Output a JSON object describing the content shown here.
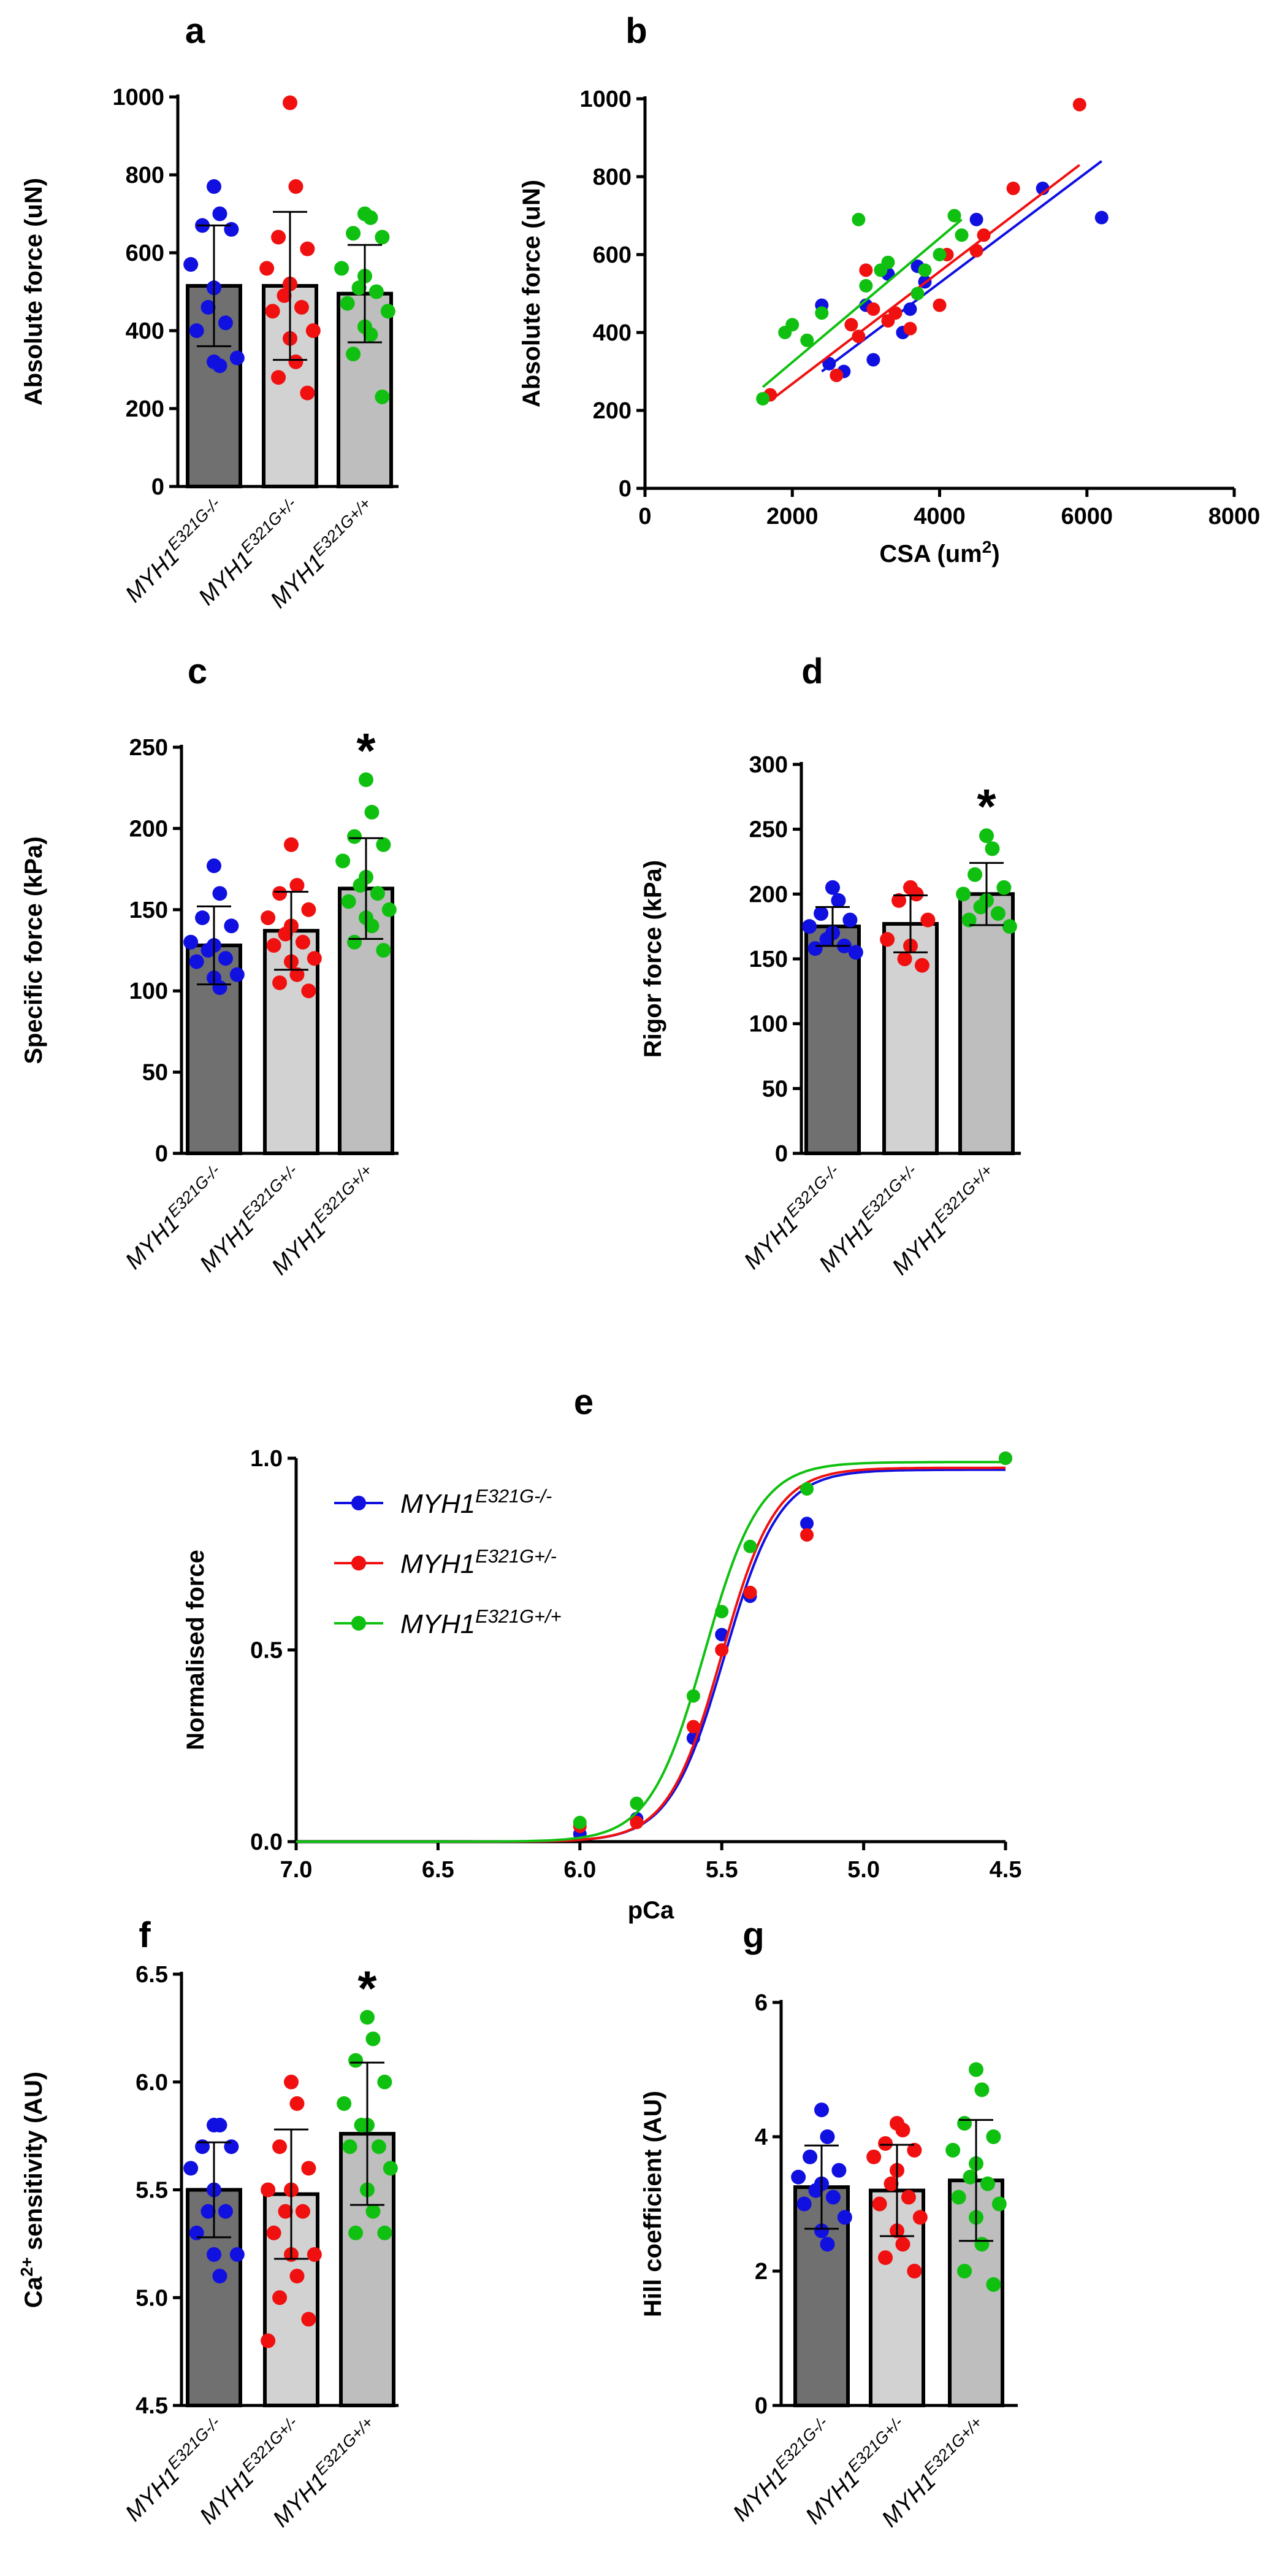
{
  "figure": {
    "group_labels": [
      {
        "base": "MYH1",
        "sup": "E321G-/-"
      },
      {
        "base": "MYH1",
        "sup": "E321G+/-"
      },
      {
        "base": "MYH1",
        "sup": "E321G+/+"
      }
    ],
    "colors": {
      "wt": "#1010e0",
      "het": "#f01010",
      "hom": "#10c010",
      "axis": "#000000"
    },
    "bar_colors": [
      "#707070",
      "#d2d2d2",
      "#bebebe"
    ],
    "significance_marker": "*"
  },
  "chart_data": [
    {
      "id": "a",
      "letter": "a",
      "type": "bar",
      "ylabel": "Absolute force (uN)",
      "ylim": [
        0,
        1000
      ],
      "yticks": [
        0,
        200,
        400,
        600,
        800,
        1000
      ],
      "ytick_labels": [
        "0",
        "200",
        "400",
        "600",
        "800",
        "1000"
      ],
      "categories": [
        "MYH1 E321G-/-",
        "MYH1 E321G+/-",
        "MYH1 E321G+/+"
      ],
      "means": [
        515,
        515,
        495
      ],
      "sd": [
        155,
        190,
        125
      ],
      "points": [
        [
          770,
          700,
          670,
          660,
          570,
          510,
          460,
          420,
          400,
          330,
          320,
          310
        ],
        [
          985,
          770,
          640,
          610,
          560,
          520,
          490,
          460,
          450,
          400,
          380,
          320,
          280,
          240
        ],
        [
          700,
          690,
          650,
          640,
          560,
          540,
          510,
          500,
          470,
          450,
          410,
          390,
          340,
          230
        ]
      ],
      "significant": [
        false,
        false,
        false
      ]
    },
    {
      "id": "b",
      "letter": "b",
      "type": "scatter",
      "xlabel_prefix": "CSA (um",
      "xlabel_sup": "2",
      "xlabel_suffix": ")",
      "ylabel": "Absolute force (uN)",
      "xlim": [
        0,
        8000
      ],
      "xticks": [
        0,
        2000,
        4000,
        6000,
        8000
      ],
      "xtick_labels": [
        "0",
        "2000",
        "4000",
        "6000",
        "8000"
      ],
      "ylim": [
        0,
        1000
      ],
      "yticks": [
        0,
        200,
        400,
        600,
        800,
        1000
      ],
      "ytick_labels": [
        "0",
        "200",
        "400",
        "600",
        "800",
        "1000"
      ],
      "series": [
        {
          "name": "MYH1 E321G-/-",
          "color": "#1010e0",
          "x": [
            2500,
            2700,
            3000,
            3100,
            3300,
            3500,
            3700,
            3800,
            4500,
            5400,
            6200,
            3600,
            2400
          ],
          "y": [
            320,
            300,
            470,
            330,
            550,
            400,
            570,
            530,
            690,
            770,
            695,
            460,
            470
          ],
          "fit": [
            [
              2400,
              300
            ],
            [
              6200,
              840
            ]
          ]
        },
        {
          "name": "MYH1 E321G+/-",
          "color": "#f01010",
          "x": [
            1700,
            2600,
            2800,
            2900,
            3000,
            3100,
            3300,
            3400,
            3600,
            4000,
            4100,
            4500,
            4600,
            5000,
            5900
          ],
          "y": [
            240,
            290,
            420,
            390,
            560,
            460,
            430,
            450,
            410,
            470,
            600,
            610,
            650,
            770,
            985
          ],
          "fit": [
            [
              1700,
              225
            ],
            [
              5900,
              830
            ]
          ]
        },
        {
          "name": "MYH1 E321G+/+",
          "color": "#10c010",
          "x": [
            1600,
            1900,
            2000,
            2200,
            2400,
            2900,
            3000,
            3200,
            3300,
            3700,
            3800,
            4000,
            4200,
            4300
          ],
          "y": [
            230,
            400,
            420,
            380,
            450,
            690,
            520,
            560,
            580,
            500,
            560,
            600,
            700,
            650
          ],
          "fit": [
            [
              1600,
              260
            ],
            [
              4300,
              690
            ]
          ]
        }
      ]
    },
    {
      "id": "c",
      "letter": "c",
      "type": "bar",
      "ylabel": "Specific force (kPa)",
      "ylim": [
        0,
        250
      ],
      "yticks": [
        0,
        50,
        100,
        150,
        200,
        250
      ],
      "ytick_labels": [
        "0",
        "50",
        "100",
        "150",
        "200",
        "250"
      ],
      "categories": [
        "MYH1 E321G-/-",
        "MYH1 E321G+/-",
        "MYH1 E321G+/+"
      ],
      "means": [
        128,
        137,
        163
      ],
      "sd": [
        24,
        24,
        31
      ],
      "points": [
        [
          177,
          160,
          145,
          140,
          130,
          128,
          125,
          120,
          118,
          110,
          108,
          102
        ],
        [
          190,
          165,
          160,
          150,
          145,
          140,
          135,
          130,
          128,
          120,
          118,
          110,
          105,
          100
        ],
        [
          230,
          210,
          195,
          190,
          180,
          170,
          165,
          160,
          155,
          150,
          145,
          140,
          130,
          125
        ]
      ],
      "significant": [
        false,
        false,
        true
      ]
    },
    {
      "id": "d",
      "letter": "d",
      "type": "bar",
      "ylabel": "Rigor force (kPa)",
      "ylim": [
        0,
        300
      ],
      "yticks": [
        0,
        50,
        100,
        150,
        200,
        250,
        300
      ],
      "ytick_labels": [
        "0",
        "50",
        "100",
        "150",
        "200",
        "250",
        "300"
      ],
      "categories": [
        "MYH1 E321G-/-",
        "MYH1 E321G+/-",
        "MYH1 E321G+/+"
      ],
      "means": [
        175,
        177,
        200
      ],
      "sd": [
        15,
        22,
        24
      ],
      "points": [
        [
          205,
          195,
          185,
          180,
          175,
          170,
          165,
          160,
          158,
          155
        ],
        [
          205,
          200,
          195,
          180,
          165,
          160,
          150,
          145
        ],
        [
          245,
          235,
          215,
          205,
          200,
          195,
          190,
          185,
          180,
          175
        ]
      ],
      "significant": [
        false,
        false,
        true
      ]
    },
    {
      "id": "e",
      "letter": "e",
      "type": "line",
      "xlabel": "pCa",
      "ylabel": "Normalised force",
      "xlim": [
        7.0,
        4.5
      ],
      "xticks": [
        7.0,
        6.5,
        6.0,
        5.5,
        5.0,
        4.5
      ],
      "xtick_labels": [
        "7.0",
        "6.5",
        "6.0",
        "5.5",
        "5.0",
        "4.5"
      ],
      "ylim": [
        0.0,
        1.0
      ],
      "yticks": [
        0.0,
        0.5,
        1.0
      ],
      "ytick_labels": [
        "0.0",
        "0.5",
        "1.0"
      ],
      "x": [
        6.0,
        5.8,
        5.6,
        5.5,
        5.4,
        5.2,
        4.5
      ],
      "series": [
        {
          "name": "MYH1 E321G-/-",
          "color": "#1010e0",
          "values": [
            0.02,
            0.06,
            0.27,
            0.54,
            0.64,
            0.83,
            1.0
          ],
          "pca50": 5.49,
          "hill": 4.5,
          "max": 0.97
        },
        {
          "name": "MYH1 E321G+/-",
          "color": "#f01010",
          "values": [
            0.04,
            0.05,
            0.3,
            0.5,
            0.65,
            0.8,
            1.0
          ],
          "pca50": 5.5,
          "hill": 4.6,
          "max": 0.975
        },
        {
          "name": "MYH1 E321G+/+",
          "color": "#10c010",
          "values": [
            0.05,
            0.1,
            0.38,
            0.6,
            0.77,
            0.92,
            1.0
          ],
          "pca50": 5.56,
          "hill": 4.5,
          "max": 0.99
        }
      ],
      "legend": [
        {
          "base": "MYH1",
          "sup": "E321G-/-",
          "color": "#1010e0"
        },
        {
          "base": "MYH1",
          "sup": "E321G+/-",
          "color": "#f01010"
        },
        {
          "base": "MYH1",
          "sup": "E321G+/+",
          "color": "#10c010"
        }
      ]
    },
    {
      "id": "f",
      "letter": "f",
      "type": "bar",
      "ylabel_prefix": "Ca",
      "ylabel_sup": "2+",
      "ylabel_suffix": " sensitivity (AU)",
      "ylim": [
        4.5,
        6.5
      ],
      "yticks": [
        4.5,
        5.0,
        5.5,
        6.0,
        6.5
      ],
      "ytick_labels": [
        "4.5",
        "5.0",
        "5.5",
        "6.0",
        "6.5"
      ],
      "categories": [
        "MYH1 E321G-/-",
        "MYH1 E321G+/-",
        "MYH1 E321G+/+"
      ],
      "means": [
        5.5,
        5.48,
        5.76
      ],
      "sd": [
        0.22,
        0.3,
        0.33
      ],
      "points": [
        [
          5.8,
          5.8,
          5.7,
          5.7,
          5.6,
          5.5,
          5.4,
          5.4,
          5.3,
          5.2,
          5.2,
          5.1
        ],
        [
          6.0,
          5.9,
          5.7,
          5.6,
          5.5,
          5.5,
          5.4,
          5.4,
          5.3,
          5.2,
          5.2,
          5.1,
          5.0,
          4.9,
          4.8
        ],
        [
          6.3,
          6.2,
          6.1,
          6.0,
          5.9,
          5.8,
          5.8,
          5.7,
          5.7,
          5.6,
          5.5,
          5.4,
          5.3,
          5.3
        ]
      ],
      "significant": [
        false,
        false,
        true
      ]
    },
    {
      "id": "g",
      "letter": "g",
      "type": "bar",
      "ylabel": "Hill coefficient (AU)",
      "ylim": [
        0,
        6
      ],
      "yticks": [
        0,
        2,
        4,
        6
      ],
      "ytick_labels": [
        "0",
        "2",
        "4",
        "6"
      ],
      "categories": [
        "MYH1 E321G-/-",
        "MYH1 E321G+/-",
        "MYH1 E321G+/+"
      ],
      "means": [
        3.25,
        3.2,
        3.35
      ],
      "sd": [
        0.62,
        0.68,
        0.9
      ],
      "points": [
        [
          4.4,
          4.0,
          3.7,
          3.5,
          3.4,
          3.3,
          3.2,
          3.1,
          3.0,
          2.8,
          2.6,
          2.4
        ],
        [
          4.2,
          4.1,
          3.9,
          3.8,
          3.7,
          3.5,
          3.3,
          3.1,
          3.0,
          2.8,
          2.6,
          2.4,
          2.2,
          2.0
        ],
        [
          5.0,
          4.7,
          4.2,
          4.0,
          3.8,
          3.6,
          3.4,
          3.3,
          3.1,
          3.0,
          2.8,
          2.4,
          2.0,
          1.8
        ]
      ],
      "significant": [
        false,
        false,
        false
      ]
    }
  ]
}
